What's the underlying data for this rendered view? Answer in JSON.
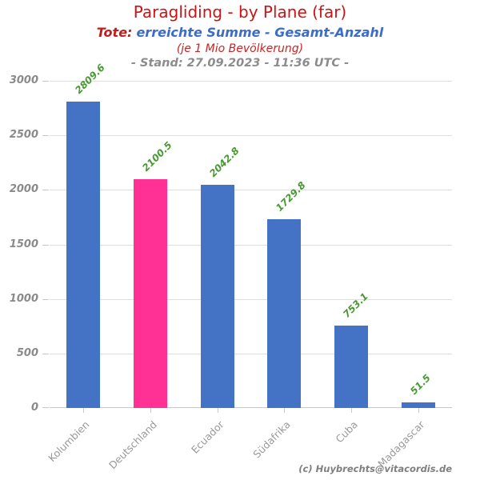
{
  "header": {
    "title": "Paragliding - by Plane (far)",
    "subtitle_prefix": "Tote:",
    "subtitle_main": "erreichte Summe - Gesamt-Anzahl",
    "subtitle_note": "(je 1 Mio Bevölkerung)",
    "stand_line": "- Stand: 27.09.2023 - 11:36 UTC -"
  },
  "footer": {
    "credit": "(c) Huybrechts@vitacordis.de"
  },
  "chart_data": {
    "type": "bar",
    "title": "Paragliding - by Plane (far)",
    "subtitle": "Tote: erreichte Summe - Gesamt-Anzahl (je 1 Mio Bevölkerung)",
    "timestamp": "Stand: 27.09.2023 - 11:36 UTC",
    "categories": [
      "Kolumbien",
      "Deutschland",
      "Ecuador",
      "Südafrika",
      "Cuba",
      "Madagascar"
    ],
    "values": [
      2809.6,
      2100.5,
      2042.8,
      1729.8,
      753.1,
      51.5
    ],
    "value_labels": [
      "2809.6",
      "2100.5",
      "2042.8",
      "1729.8",
      "753.1",
      "51.5"
    ],
    "bar_colors": [
      "#4472C4",
      "#FF3194",
      "#4472C4",
      "#4472C4",
      "#4472C4",
      "#4472C4"
    ],
    "highlight_category": "Deutschland",
    "xlabel": "",
    "ylabel": "",
    "ylim": [
      0,
      3000
    ],
    "yticks": [
      0,
      500,
      1000,
      1500,
      2000,
      2500,
      3000
    ],
    "grid": "horizontal",
    "legend": "none",
    "value_label_rotation_deg": -45,
    "xtick_rotation_deg": -45
  },
  "colors": {
    "title_red": "#CC1414",
    "subtitle_red": "#C31C1C",
    "subtitle_blue": "#3B6CC7",
    "note_red": "#CC2222",
    "stand_gray": "#8C8C8C",
    "bar_blue": "#4472C4",
    "bar_pink": "#FF3194",
    "value_green": "#479A30",
    "axis_label_gray": "#999999",
    "gridline_gray": "#DEDEDE"
  }
}
